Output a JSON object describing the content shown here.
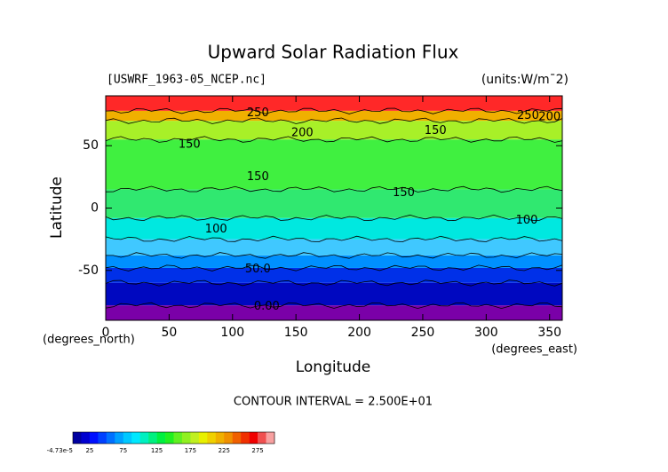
{
  "chart_data": {
    "type": "contour",
    "title": "Upward Solar Radiation Flux",
    "file_label": "[USWRF_1963-05_NCEP.nc]",
    "units_label": "(units:W/m¯2)",
    "xlabel": "Longitude",
    "ylabel": "Latitude",
    "x_unit": "(degrees_east)",
    "y_unit": "(degrees_north)",
    "note": "CONTOUR INTERVAL = 2.500E+01",
    "xlim": [
      0,
      360
    ],
    "ylim": [
      -90,
      90
    ],
    "xticks": [
      0,
      50,
      100,
      150,
      200,
      250,
      300,
      350
    ],
    "yticks": [
      -50,
      0,
      50
    ],
    "bands": {
      "lat_edges": [
        -90,
        -78,
        -60,
        -48,
        -38,
        -25,
        -8,
        15,
        55,
        70,
        78,
        90
      ],
      "values": [
        0,
        25,
        50,
        75,
        90,
        110,
        135,
        150,
        175,
        200,
        250
      ],
      "colors": [
        "#7a00a8",
        "#0008c0",
        "#0030e8",
        "#0090ff",
        "#40c8ff",
        "#00e8e0",
        "#30e870",
        "#40f040",
        "#a8f028",
        "#f0b000",
        "#ff2828"
      ]
    },
    "contour_labels": [
      {
        "text": "250",
        "lon": 120,
        "lat": 76
      },
      {
        "text": "250",
        "lon": 333,
        "lat": 74
      },
      {
        "text": "200",
        "lon": 350,
        "lat": 73
      },
      {
        "text": "150",
        "lon": 66,
        "lat": 51
      },
      {
        "text": "200",
        "lon": 155,
        "lat": 60
      },
      {
        "text": "150",
        "lon": 260,
        "lat": 62
      },
      {
        "text": "150",
        "lon": 120,
        "lat": 25
      },
      {
        "text": "150",
        "lon": 235,
        "lat": 12
      },
      {
        "text": "100",
        "lon": 87,
        "lat": -17
      },
      {
        "text": "100",
        "lon": 332,
        "lat": -10
      },
      {
        "text": "50.0",
        "lon": 120,
        "lat": -49
      },
      {
        "text": "0.00",
        "lon": 127,
        "lat": -79
      }
    ],
    "colorbar": {
      "lim": [
        0,
        300
      ],
      "colors": [
        "#0000a0",
        "#0000d0",
        "#0010ff",
        "#0040ff",
        "#0070ff",
        "#00a0ff",
        "#00c8ff",
        "#00e8ff",
        "#00f0c0",
        "#00f080",
        "#00f040",
        "#20f020",
        "#60f020",
        "#90f020",
        "#c0f020",
        "#e8f000",
        "#f0d000",
        "#f0b000",
        "#f09000",
        "#f06000",
        "#f03000",
        "#f00000",
        "#f05050",
        "#f8a0a0"
      ],
      "ticks": [
        {
          "value": -4.73e-05,
          "label": "-4.73e-5"
        },
        25,
        75,
        125,
        175,
        225,
        275
      ]
    }
  }
}
